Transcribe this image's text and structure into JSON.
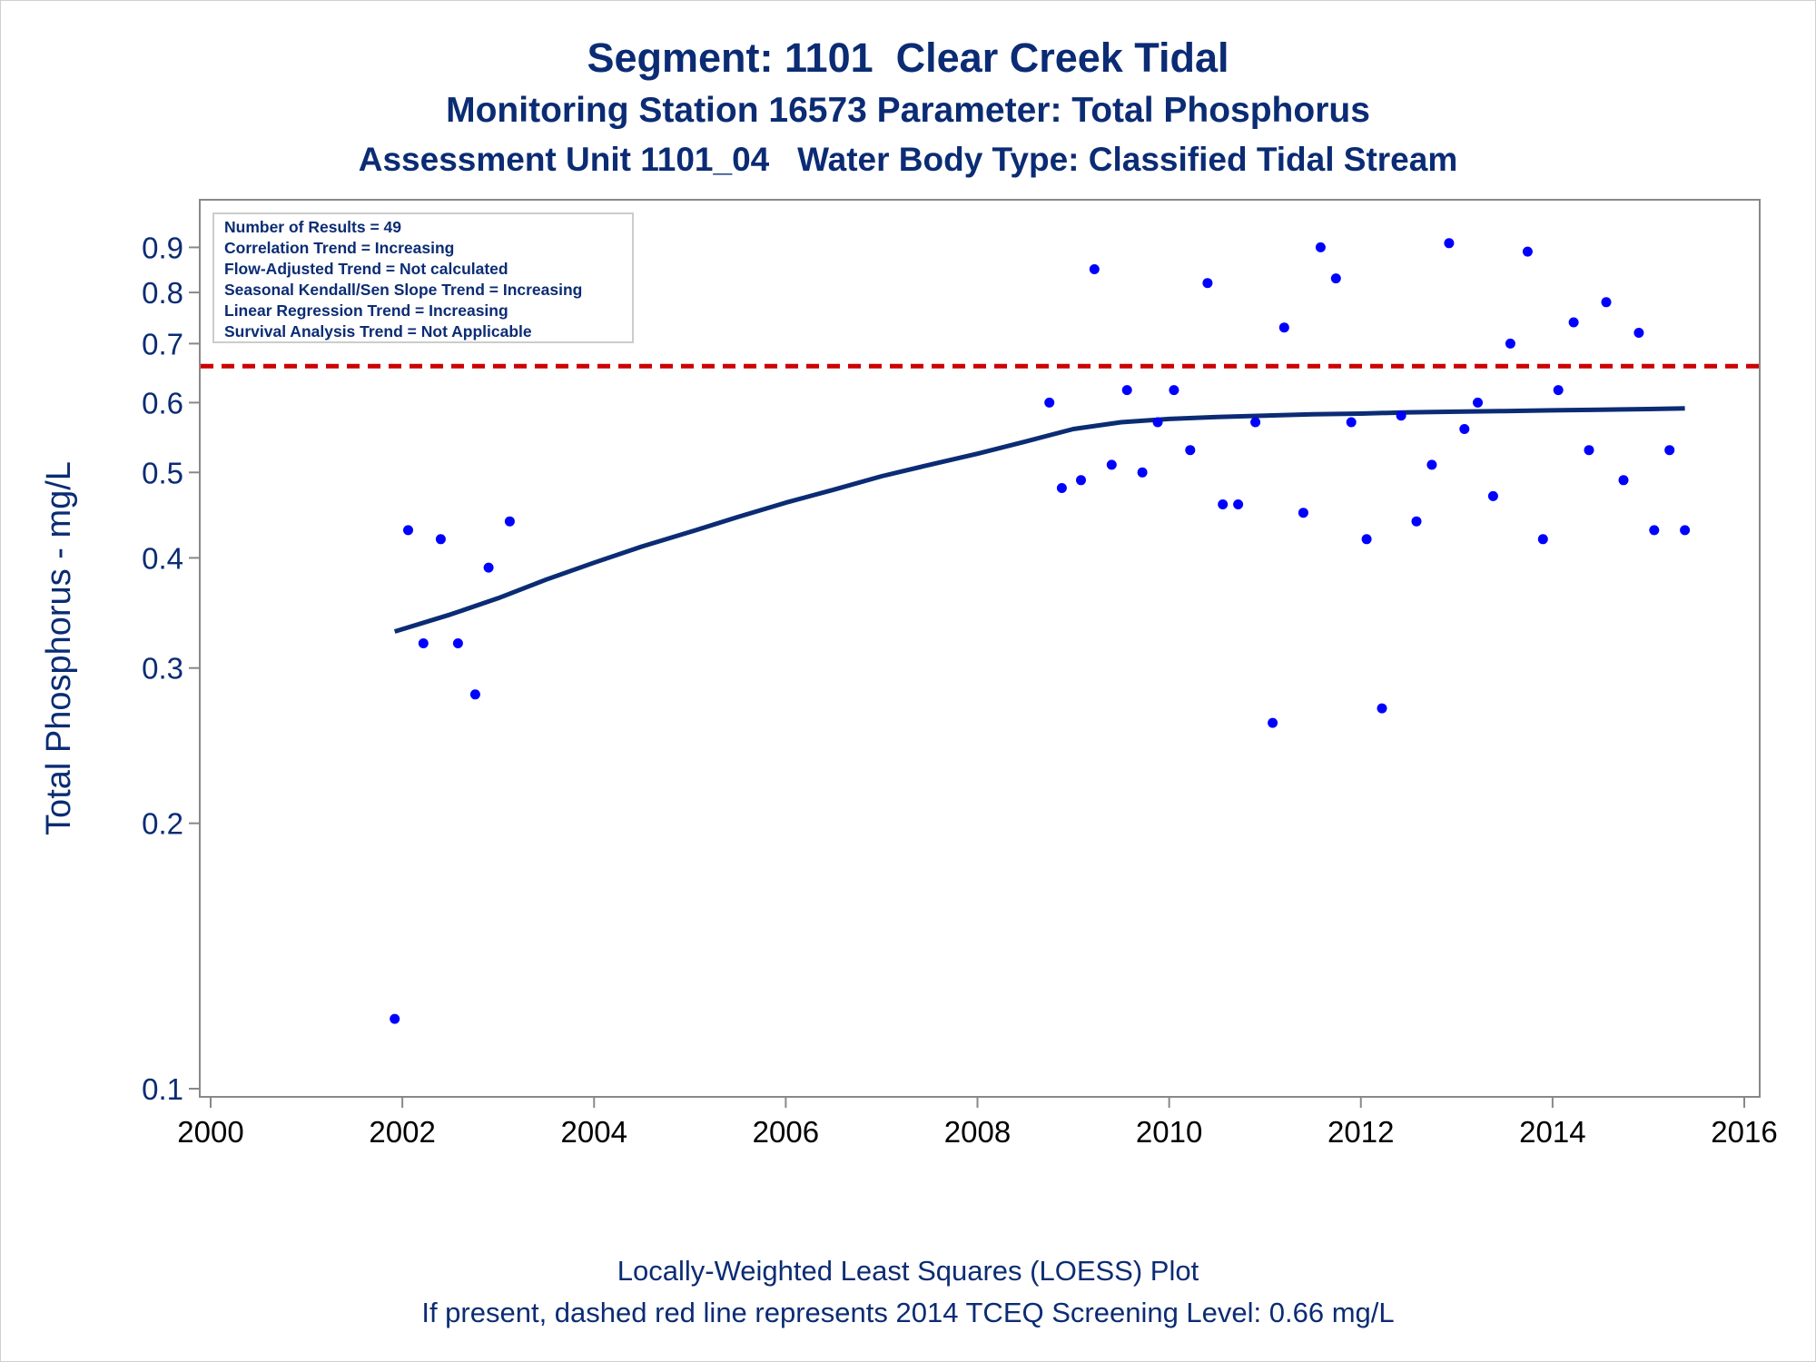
{
  "titles": {
    "line1": "Segment: 1101  Clear Creek Tidal",
    "line2": "Monitoring Station 16573 Parameter: Total Phosphorus",
    "line3": "Assessment Unit 1101_04   Water Body Type: Classified Tidal Stream"
  },
  "footnotes": {
    "line1": "Locally-Weighted Least Squares (LOESS) Plot",
    "line2": "If present, dashed red line represents 2014 TCEQ Screening Level: 0.66 mg/L"
  },
  "stats_box": [
    "Number of Results = 49",
    "Correlation Trend = Increasing",
    "Flow-Adjusted Trend = Not calculated",
    "Seasonal Kendall/Sen Slope Trend = Increasing",
    "Linear Regression Trend = Increasing",
    "Survival Analysis Trend = Not Applicable"
  ],
  "colors": {
    "text": "#0b2c74",
    "points": "#0000ff",
    "loess": "#0b2c74",
    "screening_line": "#cc0000",
    "axis": "#888888"
  },
  "chart_data": {
    "type": "scatter",
    "ylabel": "Total Phosphorus - mg/L",
    "xlabel": "",
    "xlim": [
      2000,
      2016
    ],
    "ylim": [
      0.1,
      1.0
    ],
    "y_scale": "log",
    "x_ticks": [
      2000,
      2002,
      2004,
      2006,
      2008,
      2010,
      2012,
      2014,
      2016
    ],
    "y_ticks": [
      0.1,
      0.2,
      0.3,
      0.4,
      0.5,
      0.6,
      0.7,
      0.8,
      0.9
    ],
    "screening_level": 0.66,
    "series": [
      {
        "type": "scatter",
        "points": [
          [
            2001.92,
            0.12
          ],
          [
            2002.06,
            0.43
          ],
          [
            2002.22,
            0.32
          ],
          [
            2002.4,
            0.42
          ],
          [
            2002.58,
            0.32
          ],
          [
            2002.76,
            0.28
          ],
          [
            2002.9,
            0.39
          ],
          [
            2003.12,
            0.44
          ],
          [
            2008.75,
            0.6
          ],
          [
            2008.88,
            0.48
          ],
          [
            2009.08,
            0.49
          ],
          [
            2009.22,
            0.85
          ],
          [
            2009.4,
            0.51
          ],
          [
            2009.56,
            0.62
          ],
          [
            2009.72,
            0.5
          ],
          [
            2009.88,
            0.57
          ],
          [
            2010.05,
            0.62
          ],
          [
            2010.22,
            0.53
          ],
          [
            2010.4,
            0.82
          ],
          [
            2010.56,
            0.46
          ],
          [
            2010.72,
            0.46
          ],
          [
            2010.9,
            0.57
          ],
          [
            2011.08,
            0.26
          ],
          [
            2011.2,
            0.73
          ],
          [
            2011.4,
            0.45
          ],
          [
            2011.58,
            0.9
          ],
          [
            2011.74,
            0.83
          ],
          [
            2011.9,
            0.57
          ],
          [
            2012.06,
            0.42
          ],
          [
            2012.22,
            0.27
          ],
          [
            2012.42,
            0.58
          ],
          [
            2012.58,
            0.44
          ],
          [
            2012.74,
            0.51
          ],
          [
            2012.92,
            0.91
          ],
          [
            2013.08,
            0.56
          ],
          [
            2013.22,
            0.6
          ],
          [
            2013.38,
            0.47
          ],
          [
            2013.56,
            0.7
          ],
          [
            2013.74,
            0.89
          ],
          [
            2013.9,
            0.42
          ],
          [
            2014.06,
            0.62
          ],
          [
            2014.22,
            0.74
          ],
          [
            2014.38,
            0.53
          ],
          [
            2014.56,
            0.78
          ],
          [
            2014.74,
            0.49
          ],
          [
            2014.9,
            0.72
          ],
          [
            2015.06,
            0.43
          ],
          [
            2015.22,
            0.53
          ],
          [
            2015.38,
            0.43
          ]
        ]
      },
      {
        "type": "line",
        "points": [
          [
            2001.92,
            0.33
          ],
          [
            2002.5,
            0.345
          ],
          [
            2003.0,
            0.36
          ],
          [
            2003.5,
            0.378
          ],
          [
            2004.0,
            0.395
          ],
          [
            2004.5,
            0.412
          ],
          [
            2005.0,
            0.428
          ],
          [
            2005.5,
            0.445
          ],
          [
            2006.0,
            0.462
          ],
          [
            2006.5,
            0.478
          ],
          [
            2007.0,
            0.495
          ],
          [
            2007.5,
            0.51
          ],
          [
            2008.0,
            0.525
          ],
          [
            2008.5,
            0.542
          ],
          [
            2009.0,
            0.56
          ],
          [
            2009.5,
            0.57
          ],
          [
            2010.0,
            0.575
          ],
          [
            2010.5,
            0.578
          ],
          [
            2011.0,
            0.58
          ],
          [
            2011.5,
            0.582
          ],
          [
            2012.0,
            0.583
          ],
          [
            2012.5,
            0.585
          ],
          [
            2013.0,
            0.586
          ],
          [
            2013.5,
            0.587
          ],
          [
            2014.0,
            0.588
          ],
          [
            2014.5,
            0.589
          ],
          [
            2015.0,
            0.59
          ],
          [
            2015.38,
            0.591
          ]
        ]
      }
    ]
  }
}
